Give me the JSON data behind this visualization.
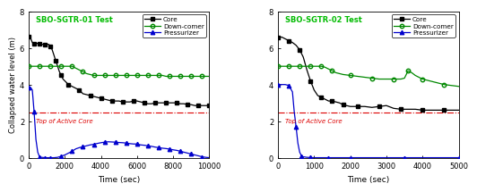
{
  "plot1": {
    "title": "SBO-SGTR-01 Test",
    "title_color": "#00bb00",
    "xlim": [
      0,
      10000
    ],
    "ylim": [
      0,
      8
    ],
    "xticks": [
      0,
      2000,
      4000,
      6000,
      8000,
      10000
    ],
    "yticks": [
      0,
      2,
      4,
      6,
      8
    ],
    "xlabel": "Time (sec)",
    "ylabel": "Collapsed water level (m)",
    "tac_y": 2.45,
    "tac_label": "Top of Active Core",
    "core": {
      "t": [
        0,
        100,
        200,
        300,
        400,
        500,
        600,
        700,
        800,
        900,
        1000,
        1100,
        1200,
        1300,
        1400,
        1500,
        1600,
        1700,
        1800,
        1900,
        2000,
        2200,
        2400,
        2600,
        2800,
        3000,
        3200,
        3400,
        3600,
        3800,
        4000,
        4200,
        4400,
        4600,
        4800,
        5000,
        5200,
        5400,
        5600,
        5800,
        6000,
        6200,
        6400,
        6600,
        6800,
        7000,
        7200,
        7400,
        7600,
        7800,
        8000,
        8200,
        8400,
        8600,
        8800,
        9000,
        9200,
        9400,
        9600,
        9800,
        10000
      ],
      "v": [
        6.6,
        6.55,
        6.3,
        6.25,
        6.25,
        6.25,
        6.25,
        6.2,
        6.2,
        6.2,
        6.2,
        6.2,
        6.1,
        5.9,
        5.6,
        5.3,
        5.0,
        4.7,
        4.5,
        4.3,
        4.2,
        4.0,
        3.9,
        3.8,
        3.7,
        3.5,
        3.45,
        3.4,
        3.35,
        3.3,
        3.25,
        3.2,
        3.15,
        3.1,
        3.1,
        3.1,
        3.05,
        3.05,
        3.05,
        3.1,
        3.1,
        3.05,
        3.0,
        2.95,
        2.95,
        3.0,
        3.0,
        3.0,
        3.0,
        3.0,
        3.0,
        3.0,
        2.95,
        2.95,
        2.9,
        2.9,
        2.85,
        2.85,
        2.85,
        2.85,
        2.85
      ]
    },
    "downcomer": {
      "t": [
        0,
        200,
        400,
        600,
        800,
        1000,
        1200,
        1400,
        1600,
        1800,
        2000,
        2200,
        2400,
        2600,
        2800,
        3000,
        3200,
        3400,
        3600,
        3800,
        4000,
        4200,
        4400,
        4600,
        4800,
        5000,
        5200,
        5400,
        5600,
        5800,
        6000,
        6200,
        6400,
        6600,
        6800,
        7000,
        7200,
        7400,
        7600,
        7800,
        8000,
        8200,
        8400,
        8600,
        8800,
        9000,
        9200,
        9400,
        9600,
        9800,
        10000
      ],
      "v": [
        5.0,
        5.0,
        5.0,
        5.0,
        5.0,
        5.0,
        5.0,
        5.0,
        5.0,
        5.0,
        5.0,
        5.0,
        5.0,
        4.9,
        4.8,
        4.7,
        4.6,
        4.55,
        4.5,
        4.5,
        4.5,
        4.5,
        4.5,
        4.5,
        4.5,
        4.5,
        4.5,
        4.5,
        4.5,
        4.5,
        4.5,
        4.5,
        4.5,
        4.5,
        4.5,
        4.5,
        4.5,
        4.5,
        4.45,
        4.45,
        4.45,
        4.45,
        4.45,
        4.45,
        4.45,
        4.45,
        4.45,
        4.45,
        4.45,
        4.45,
        4.45
      ]
    },
    "pressurizer": {
      "t": [
        0,
        100,
        200,
        300,
        400,
        500,
        600,
        700,
        800,
        900,
        1000,
        1100,
        1200,
        1400,
        1600,
        1800,
        2000,
        2200,
        2400,
        2600,
        2800,
        3000,
        3200,
        3400,
        3600,
        3800,
        4000,
        4200,
        4400,
        4600,
        4800,
        5000,
        5200,
        5400,
        5600,
        5800,
        6000,
        6200,
        6400,
        6600,
        6800,
        7000,
        7200,
        7400,
        7600,
        7800,
        8000,
        8200,
        8400,
        8600,
        8800,
        9000,
        9200,
        9400,
        9600,
        9800,
        10000
      ],
      "v": [
        3.85,
        3.85,
        3.7,
        2.5,
        1.0,
        0.3,
        0.05,
        0.02,
        0.01,
        0.0,
        0.0,
        0.0,
        0.0,
        0.0,
        0.02,
        0.08,
        0.15,
        0.25,
        0.35,
        0.48,
        0.55,
        0.6,
        0.65,
        0.7,
        0.73,
        0.78,
        0.82,
        0.85,
        0.87,
        0.86,
        0.85,
        0.83,
        0.82,
        0.8,
        0.77,
        0.75,
        0.75,
        0.7,
        0.68,
        0.65,
        0.62,
        0.58,
        0.55,
        0.52,
        0.5,
        0.47,
        0.43,
        0.4,
        0.35,
        0.3,
        0.25,
        0.2,
        0.15,
        0.1,
        0.05,
        0.02,
        0.0
      ]
    },
    "core_color": "#000000",
    "downcomer_color": "#008800",
    "pressurizer_color": "#0000cc",
    "tac_color": "#dd0000"
  },
  "plot2": {
    "title": "SBO-SGTR-02 Test",
    "title_color": "#00bb00",
    "xlim": [
      0,
      5000
    ],
    "ylim": [
      0,
      8
    ],
    "xticks": [
      0,
      1000,
      2000,
      3000,
      4000,
      5000
    ],
    "yticks": [
      0,
      2,
      4,
      6,
      8
    ],
    "xlabel": "Time (sec)",
    "ylabel": "",
    "tac_y": 2.45,
    "tac_label": "Top of Active Core",
    "core": {
      "t": [
        0,
        100,
        200,
        300,
        400,
        500,
        600,
        700,
        800,
        900,
        1000,
        1100,
        1200,
        1300,
        1400,
        1500,
        1600,
        1700,
        1800,
        1900,
        2000,
        2200,
        2400,
        2600,
        2800,
        3000,
        3200,
        3400,
        3600,
        3800,
        4000,
        4200,
        4400,
        4600,
        4800,
        5000
      ],
      "v": [
        6.55,
        6.6,
        6.5,
        6.4,
        6.3,
        6.15,
        5.9,
        5.5,
        4.8,
        4.2,
        3.7,
        3.4,
        3.3,
        3.2,
        3.1,
        3.1,
        3.05,
        3.0,
        2.9,
        2.85,
        2.8,
        2.8,
        2.8,
        2.75,
        2.8,
        2.85,
        2.7,
        2.65,
        2.65,
        2.65,
        2.6,
        2.6,
        2.6,
        2.6,
        2.6,
        2.6
      ]
    },
    "downcomer": {
      "t": [
        0,
        100,
        200,
        300,
        400,
        500,
        600,
        700,
        800,
        900,
        1000,
        1100,
        1200,
        1300,
        1400,
        1500,
        1600,
        1800,
        2000,
        2200,
        2400,
        2600,
        2800,
        3000,
        3200,
        3400,
        3500,
        3600,
        3700,
        3800,
        4000,
        4200,
        4400,
        4600,
        4800,
        5000
      ],
      "v": [
        5.0,
        5.0,
        5.0,
        5.0,
        5.0,
        5.0,
        5.0,
        5.0,
        5.0,
        5.0,
        5.0,
        5.0,
        5.0,
        4.95,
        4.85,
        4.75,
        4.65,
        4.55,
        4.5,
        4.45,
        4.4,
        4.35,
        4.3,
        4.3,
        4.3,
        4.3,
        4.35,
        4.75,
        4.65,
        4.5,
        4.3,
        4.2,
        4.1,
        4.0,
        3.95,
        3.9
      ]
    },
    "pressurizer": {
      "t": [
        0,
        100,
        200,
        300,
        400,
        450,
        500,
        550,
        600,
        650,
        700,
        800,
        900,
        1000,
        1200,
        1400,
        1600,
        1800,
        2000,
        2500,
        3000,
        3500,
        4000,
        4500,
        5000
      ],
      "v": [
        4.0,
        4.0,
        4.0,
        3.95,
        3.6,
        2.5,
        1.7,
        0.8,
        0.3,
        0.1,
        0.05,
        0.02,
        0.01,
        0.0,
        0.0,
        0.0,
        0.0,
        0.0,
        0.0,
        0.0,
        0.0,
        0.0,
        0.0,
        0.0,
        0.0
      ]
    },
    "core_color": "#000000",
    "downcomer_color": "#008800",
    "pressurizer_color": "#0000cc",
    "tac_color": "#dd0000"
  }
}
